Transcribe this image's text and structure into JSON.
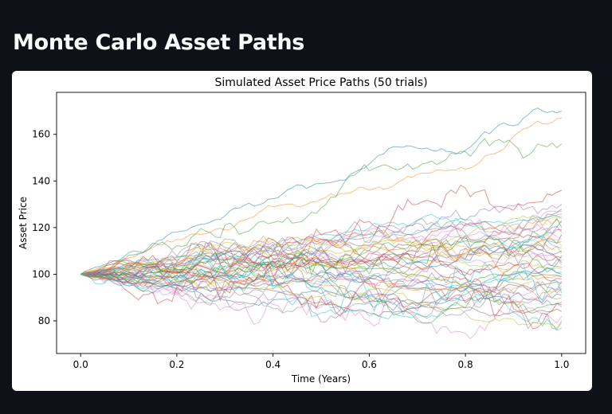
{
  "page": {
    "title": "Monte Carlo Asset Paths"
  },
  "chart_data": {
    "type": "line",
    "title": "Simulated Asset Price Paths (50 trials)",
    "xlabel": "Time (Years)",
    "ylabel": "Asset Price",
    "xlim": [
      -0.05,
      1.05
    ],
    "ylim": [
      66,
      178
    ],
    "xticks": [
      0.0,
      0.2,
      0.4,
      0.6,
      0.8,
      1.0
    ],
    "xtick_labels": [
      "0.0",
      "0.2",
      "0.4",
      "0.6",
      "0.8",
      "1.0"
    ],
    "yticks": [
      80,
      100,
      120,
      140,
      160
    ],
    "ytick_labels": [
      "80",
      "100",
      "120",
      "140",
      "160"
    ],
    "grid": false,
    "legend": "none",
    "num_trials": 50,
    "start_value": 100,
    "steps": 100,
    "x_end": 1.0,
    "final_values": [
      170,
      167,
      156,
      136,
      130,
      128,
      127,
      126,
      125,
      124,
      123,
      122,
      120,
      119,
      118,
      117,
      115,
      114,
      112,
      111,
      110,
      109,
      108,
      107,
      106,
      105,
      104,
      103,
      102,
      101,
      100,
      99,
      99,
      98,
      97,
      96,
      95,
      94,
      93,
      92,
      91,
      90,
      88,
      87,
      86,
      84,
      82,
      80,
      79,
      77
    ],
    "colors": [
      "#1f77b4",
      "#ff7f0e",
      "#2ca02c",
      "#d62728",
      "#9467bd",
      "#8c564b",
      "#e377c2",
      "#7f7f7f",
      "#bcbd22",
      "#17becf"
    ]
  }
}
